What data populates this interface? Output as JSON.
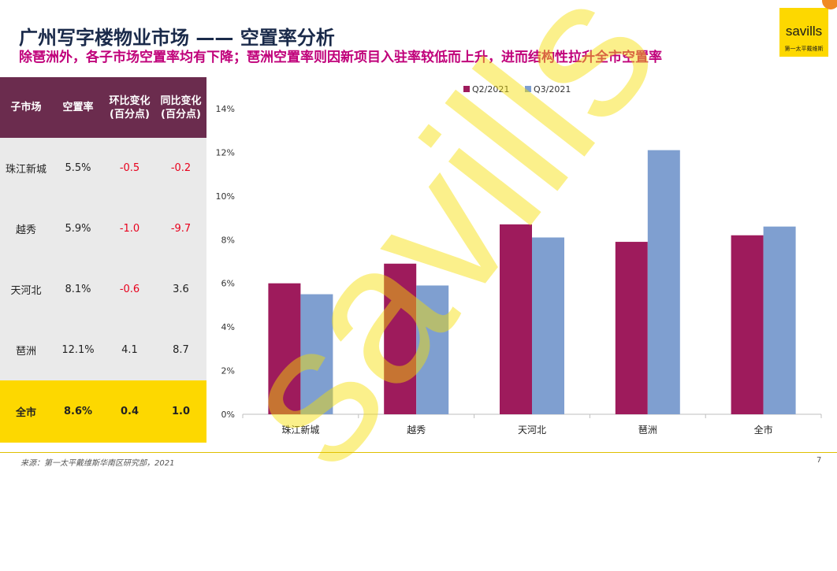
{
  "header": {
    "title": "广州写字楼物业市场 —— 空置率分析",
    "subtitle": "除琶洲外，各子市场空置率均有下降；琶洲空置率则因新项目入驻率较低而上升，进而结构性拉升全市空置率"
  },
  "logo": {
    "brand": "savills",
    "cn": "第一太平戴维斯",
    "color": "#fdd800"
  },
  "watermark": "savills",
  "table": {
    "headers": [
      {
        "line1": "子市场",
        "line2": ""
      },
      {
        "line1": "空置率",
        "line2": ""
      },
      {
        "line1": "环比变化",
        "line2": "(百分点)"
      },
      {
        "line1": "同比变化",
        "line2": "(百分点)"
      }
    ],
    "rows": [
      {
        "market": "珠江新城",
        "vacancy": "5.5%",
        "qoq": "-0.5",
        "yoy": "-0.2"
      },
      {
        "market": "越秀",
        "vacancy": "5.9%",
        "qoq": "-1.0",
        "yoy": "-9.7"
      },
      {
        "market": "天河北",
        "vacancy": "8.1%",
        "qoq": "-0.6",
        "yoy": "3.6"
      },
      {
        "market": "琶洲",
        "vacancy": "12.1%",
        "qoq": "4.1",
        "yoy": "8.7"
      },
      {
        "market": "全市",
        "vacancy": "8.6%",
        "qoq": "0.4",
        "yoy": "1.0"
      }
    ]
  },
  "chart_data": {
    "type": "bar",
    "categories": [
      "珠江新城",
      "越秀",
      "天河北",
      "琶洲",
      "全市"
    ],
    "series": [
      {
        "name": "Q2/2021",
        "values": [
          6.0,
          6.9,
          8.7,
          7.9,
          8.2
        ],
        "color": "#9e1b5c"
      },
      {
        "name": "Q3/2021",
        "values": [
          5.5,
          5.9,
          8.1,
          12.1,
          8.6
        ],
        "color": "#7f9fd0"
      }
    ],
    "ylim": [
      0,
      14
    ],
    "yticks": [
      0,
      2,
      4,
      6,
      8,
      10,
      12,
      14
    ],
    "ytick_labels": [
      "0%",
      "2%",
      "4%",
      "6%",
      "8%",
      "10%",
      "12%",
      "14%"
    ],
    "legend": "top-center",
    "grid": false
  },
  "footer": {
    "source": "来源：第一太平戴维斯华南区研究部，2021",
    "page": "7"
  }
}
